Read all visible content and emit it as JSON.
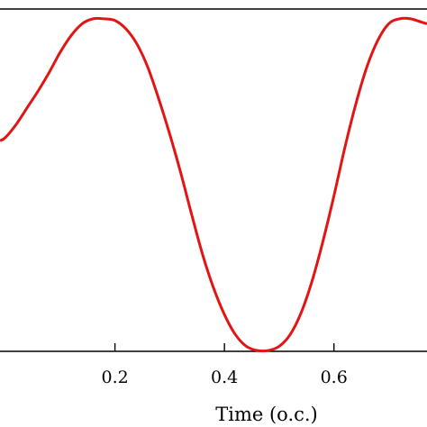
{
  "chart_data": {
    "type": "line",
    "title": "",
    "xlabel": "Time (o.c.)",
    "ylabel": "",
    "xlim": [
      -0.01,
      0.77
    ],
    "ylim": [
      -1.0,
      1.0
    ],
    "x_ticks": [
      0.2,
      0.4,
      0.6
    ],
    "x_tick_labels": [
      "0.2",
      "0.4",
      "0.6"
    ],
    "grid": false,
    "series": [
      {
        "color": "#e31414",
        "x": [
          -0.01,
          0.0,
          0.02,
          0.04,
          0.06,
          0.08,
          0.1,
          0.12,
          0.14,
          0.16,
          0.18,
          0.2,
          0.22,
          0.24,
          0.26,
          0.28,
          0.3,
          0.32,
          0.34,
          0.36,
          0.38,
          0.4,
          0.42,
          0.44,
          0.46,
          0.48,
          0.5,
          0.52,
          0.54,
          0.56,
          0.58,
          0.6,
          0.62,
          0.64,
          0.66,
          0.68,
          0.7,
          0.72,
          0.74,
          0.76,
          0.77
        ],
        "y": [
          0.26,
          0.28,
          0.36,
          0.46,
          0.56,
          0.67,
          0.79,
          0.89,
          0.96,
          0.99,
          0.99,
          0.98,
          0.93,
          0.84,
          0.7,
          0.51,
          0.3,
          0.07,
          -0.18,
          -0.42,
          -0.62,
          -0.78,
          -0.9,
          -0.97,
          -0.995,
          -0.995,
          -0.97,
          -0.9,
          -0.77,
          -0.58,
          -0.34,
          -0.07,
          0.22,
          0.48,
          0.7,
          0.86,
          0.96,
          0.99,
          0.99,
          0.97,
          0.96
        ]
      }
    ]
  }
}
